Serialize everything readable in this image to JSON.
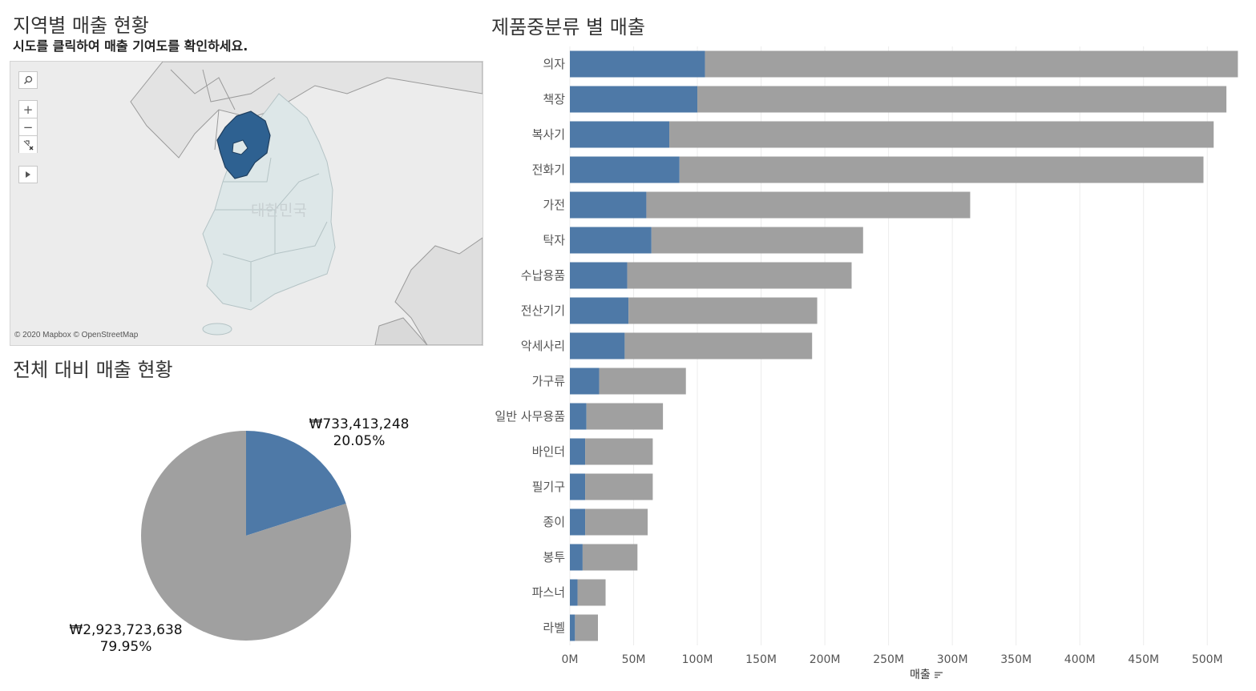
{
  "map_section": {
    "title": "지역별 매출 현황",
    "subtitle": "시도를 클릭하여 매출 기여도를 확인하세요.",
    "country_label": "대한민국",
    "attribution": "© 2020 Mapbox © OpenStreetMap",
    "selected_region_color": "#2e6191",
    "tools": [
      "search-icon",
      "zoom-in-icon",
      "zoom-out-icon",
      "pin-reset-icon",
      "expand-arrow-icon"
    ]
  },
  "pie_section": {
    "title": "전체 대비 매출 현황",
    "slices": [
      {
        "value": 733413248,
        "label": "₩733,413,248",
        "percent_label": "20.05%",
        "percent": 20.05,
        "color": "#4e79a7"
      },
      {
        "value": 2923723638,
        "label": "₩2,923,723,638",
        "percent_label": "79.95%",
        "percent": 79.95,
        "color": "#a0a0a0"
      }
    ]
  },
  "chart_data": {
    "type": "bar",
    "title": "제품중분류 별 매출",
    "xlabel": "매출",
    "orientation": "horizontal",
    "stacked": true,
    "xlim": [
      0,
      525000000
    ],
    "x_ticks": [
      0,
      50000000,
      100000000,
      150000000,
      200000000,
      250000000,
      300000000,
      350000000,
      400000000,
      450000000,
      500000000
    ],
    "x_tick_labels": [
      "0M",
      "50M",
      "100M",
      "150M",
      "200M",
      "250M",
      "300M",
      "350M",
      "400M",
      "450M",
      "500M"
    ],
    "categories": [
      "의자",
      "책장",
      "복사기",
      "전화기",
      "가전",
      "탁자",
      "수납용품",
      "전산기기",
      "악세사리",
      "가구류",
      "일반 사무용품",
      "바인더",
      "필기구",
      "종이",
      "봉투",
      "파스너",
      "라벨"
    ],
    "series": [
      {
        "values": [
          106000000,
          100000000,
          78000000,
          86000000,
          60000000,
          64000000,
          45000000,
          46000000,
          43000000,
          23000000,
          13000000,
          12000000,
          12000000,
          12000000,
          10000000,
          6000000,
          4000000
        ],
        "color": "#4e79a7"
      },
      {
        "values": [
          418000000,
          415000000,
          427000000,
          411000000,
          254000000,
          166000000,
          176000000,
          148000000,
          147000000,
          68000000,
          60000000,
          53000000,
          53000000,
          49000000,
          43000000,
          22000000,
          18000000
        ],
        "color": "#a0a0a0"
      }
    ],
    "grid": true
  }
}
